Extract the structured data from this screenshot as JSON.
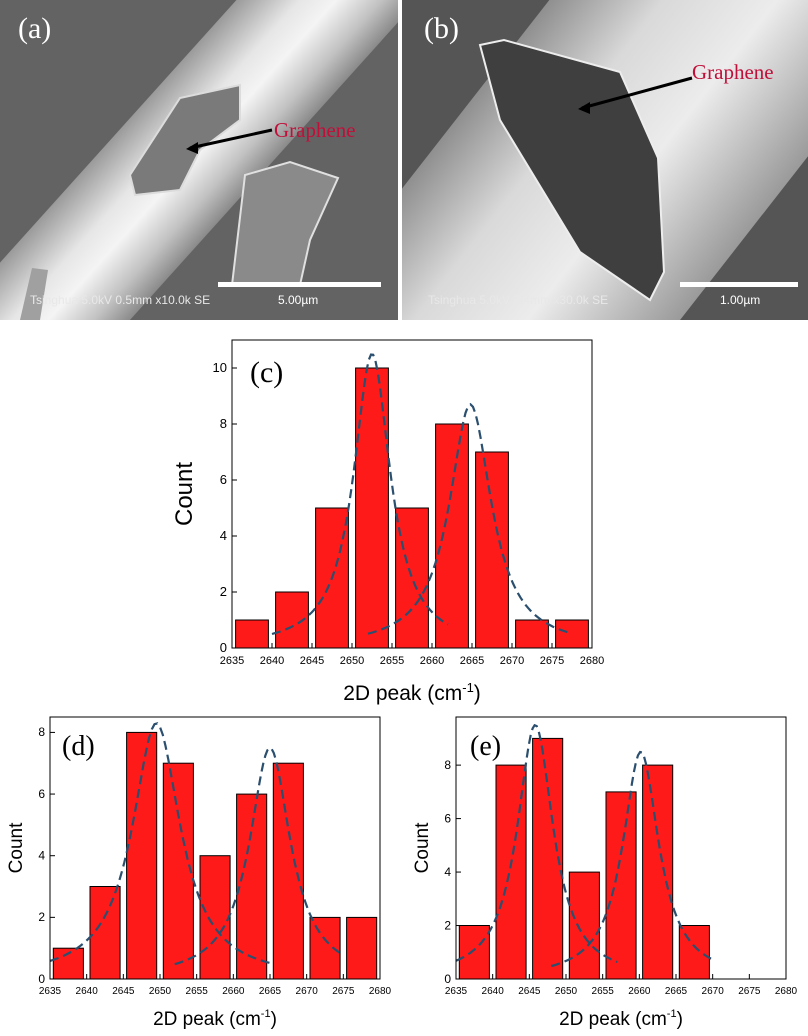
{
  "figure": {
    "panel_a": {
      "tag": "(a)",
      "label": "Graphene",
      "meta": "Tsinghua 5.0kV 0.5mm x10.0k SE",
      "scale": "5.00µm"
    },
    "panel_b": {
      "tag": "(b)",
      "label": "Graphene",
      "meta": "Tsinghua 5.0kV 0.4mm x30.0k SE",
      "scale": "1.00µm"
    }
  },
  "colors": {
    "bar": "#ff1a1a",
    "bar_edge": "#000000",
    "fit": "#2b4f6e"
  },
  "chart_data": [
    {
      "type": "bar",
      "panel": "(c)",
      "x": [
        2637.5,
        2642.5,
        2647.5,
        2652.5,
        2657.5,
        2662.5,
        2667.5,
        2672.5,
        2677.5
      ],
      "values": [
        1,
        2,
        5,
        10,
        5,
        8,
        7,
        1,
        1
      ],
      "xlim": [
        2635,
        2680
      ],
      "ylim": [
        0,
        11
      ],
      "xticks": [
        2635,
        2640,
        2645,
        2650,
        2655,
        2660,
        2665,
        2670,
        2675,
        2680
      ],
      "yticks": [
        0,
        2,
        4,
        6,
        8,
        10
      ],
      "xlabel": "2D peak (cm",
      "xlabel_sup": "-1",
      "xlabel_end": ")",
      "ylabel": "Count",
      "fits": [
        {
          "center": 2652.5,
          "amplitude": 10.5,
          "hwhm": 2.8,
          "range": [
            2640,
            2662
          ]
        },
        {
          "center": 2664.8,
          "amplitude": 8.7,
          "hwhm": 3.2,
          "range": [
            2652,
            2677
          ]
        }
      ]
    },
    {
      "type": "bar",
      "panel": "(d)",
      "x": [
        2637.5,
        2642.5,
        2647.5,
        2652.5,
        2657.5,
        2662.5,
        2667.5,
        2672.5,
        2677.5
      ],
      "values": [
        1,
        3,
        8,
        7,
        4,
        6,
        7,
        2,
        2
      ],
      "xlim": [
        2635,
        2680
      ],
      "ylim": [
        0,
        8.5
      ],
      "xticks": [
        2635,
        2640,
        2645,
        2650,
        2655,
        2660,
        2665,
        2670,
        2675,
        2680
      ],
      "yticks": [
        0,
        2,
        4,
        6,
        8
      ],
      "xlabel": "2D peak (cm",
      "xlabel_sup": "-1",
      "xlabel_end": ")",
      "ylabel": "Count",
      "fits": [
        {
          "center": 2649.5,
          "amplitude": 8.3,
          "hwhm": 4.0,
          "range": [
            2635,
            2665
          ]
        },
        {
          "center": 2665.0,
          "amplitude": 7.5,
          "hwhm": 3.4,
          "range": [
            2652,
            2675
          ]
        }
      ]
    },
    {
      "type": "bar",
      "panel": "(e)",
      "x": [
        2637.5,
        2642.5,
        2647.5,
        2652.5,
        2657.5,
        2662.5,
        2667.5
      ],
      "values": [
        2,
        8,
        9,
        4,
        7,
        8,
        2
      ],
      "xlim": [
        2635,
        2680
      ],
      "ylim": [
        0,
        9.8
      ],
      "xticks": [
        2635,
        2640,
        2645,
        2650,
        2655,
        2660,
        2665,
        2670,
        2675,
        2680
      ],
      "yticks": [
        0,
        2,
        4,
        6,
        8
      ],
      "xlabel": "2D peak (cm",
      "xlabel_sup": "-1",
      "xlabel_end": ")",
      "ylabel": "Count",
      "fits": [
        {
          "center": 2645.8,
          "amplitude": 9.5,
          "hwhm": 3.0,
          "range": [
            2635,
            2657
          ]
        },
        {
          "center": 2660.2,
          "amplitude": 8.5,
          "hwhm": 3.0,
          "range": [
            2648,
            2670
          ]
        }
      ]
    }
  ]
}
